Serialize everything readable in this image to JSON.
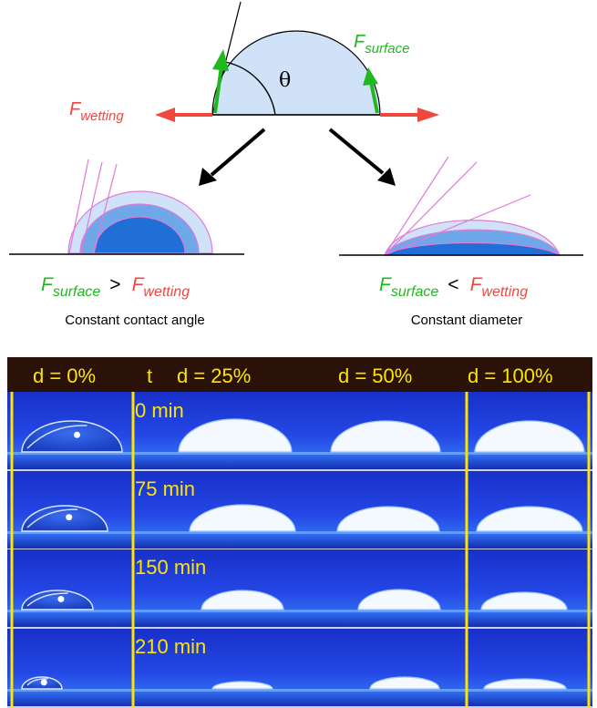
{
  "colors": {
    "drop_fill": "#cfe2f8",
    "drop_mid": "#6ea8e8",
    "drop_dark": "#1f6fd6",
    "drop_outline": "#e07ad8",
    "green": "#1fb81f",
    "red": "#f0473f",
    "header_bg": "#2a1208",
    "label_yellow": "#ffe400",
    "photo_blue": "#1a2fd0"
  },
  "top_diagram": {
    "angle_symbol": "θ",
    "surface_force": {
      "main": "F",
      "sub": "surface"
    },
    "wetting_force": {
      "main": "F",
      "sub": "wetting"
    }
  },
  "left_case": {
    "relation": {
      "left_main": "F",
      "left_sub": "surface",
      "operator": ">",
      "right_main": "F",
      "right_sub": "wetting"
    },
    "caption": "Constant contact angle"
  },
  "right_case": {
    "relation": {
      "left_main": "F",
      "left_sub": "surface",
      "operator": "<",
      "right_main": "F",
      "right_sub": "wetting"
    },
    "caption": "Constant diameter"
  },
  "photo_grid": {
    "column_labels": [
      "d = 0%",
      "t",
      "d = 25%",
      "d = 50%",
      "d = 100%"
    ],
    "time_labels": [
      "0 min",
      "75 min",
      "150 min",
      "210 min"
    ]
  }
}
